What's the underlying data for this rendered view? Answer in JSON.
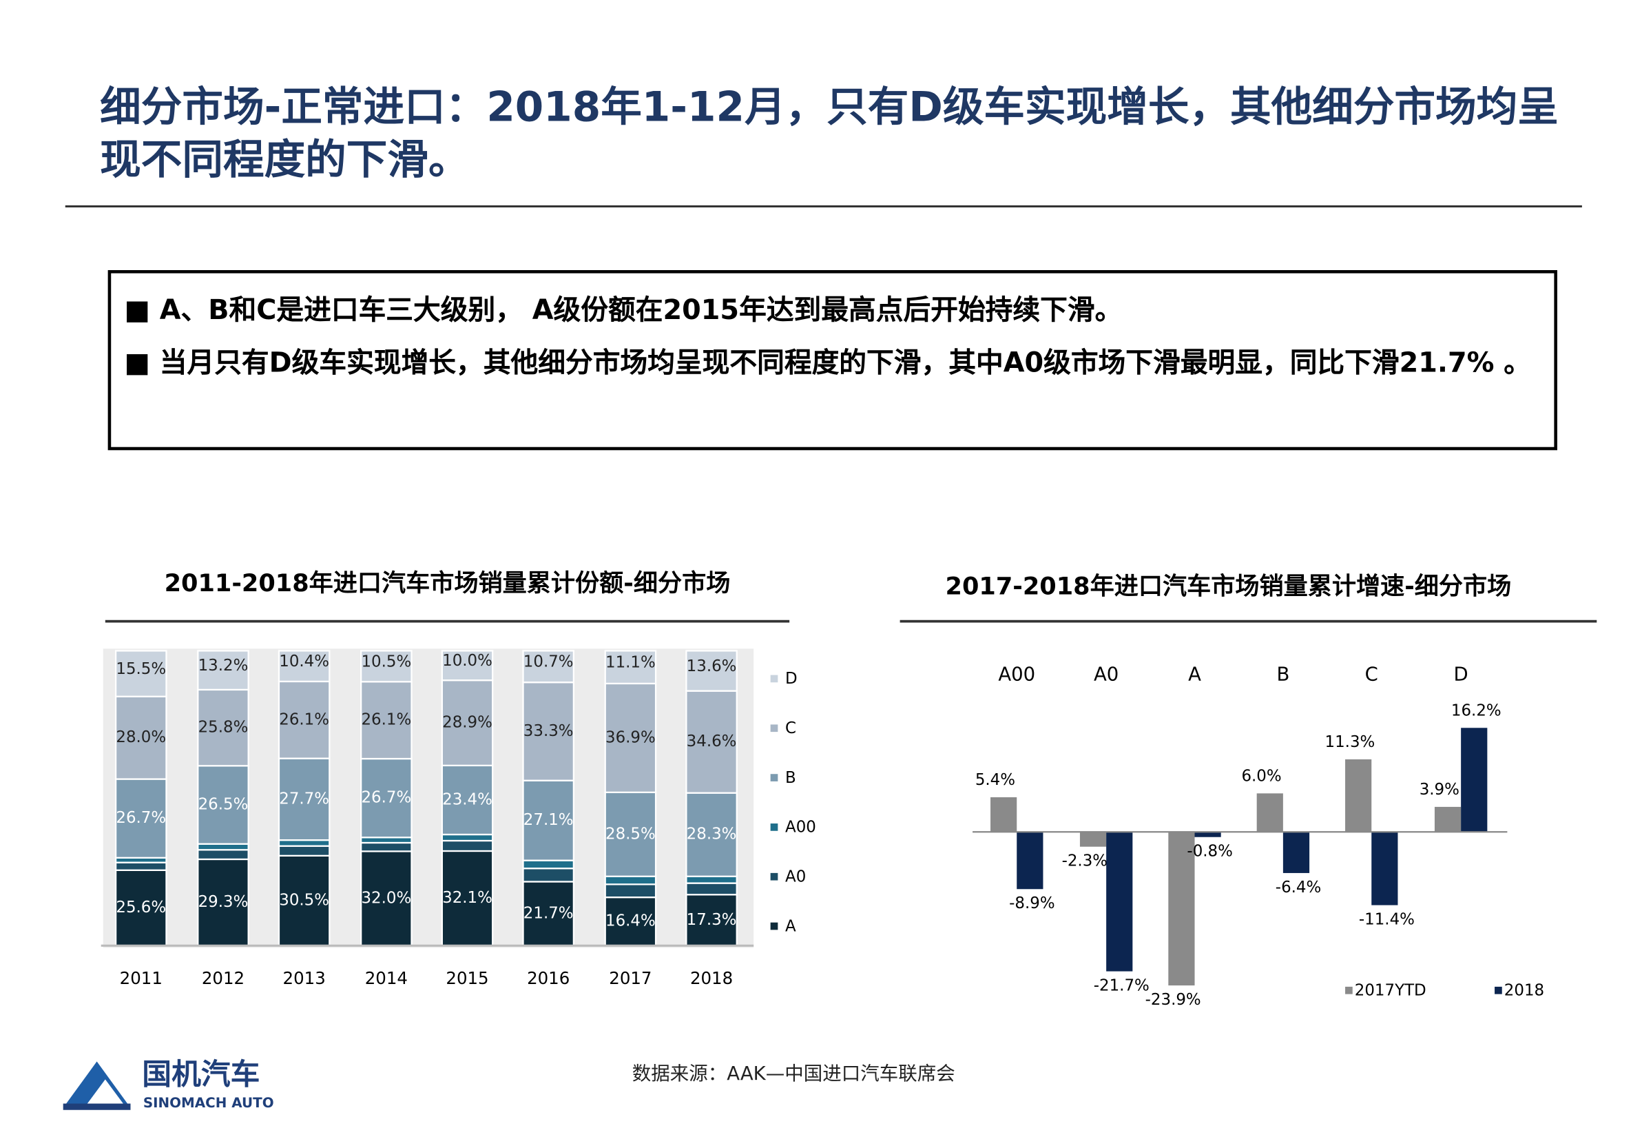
{
  "title": "细分市场-正常进口：2018年1-12月，只有D级车实现增长，其他细分市场均呈现不同程度的下滑。",
  "bullets": [
    "A、B和C是进口车三大级别， A级份额在2015年达到最高点后开始持续下滑。",
    "当月只有D级车实现增长，其他细分市场均呈现不同程度的下滑，其中A0级市场下滑最明显，同比下滑21.7% 。"
  ],
  "chart_data": [
    {
      "type": "bar",
      "stacked": true,
      "title": "2011-2018年进口汽车市场销量累计份额-细分市场",
      "categories": [
        "2011",
        "2012",
        "2013",
        "2014",
        "2015",
        "2016",
        "2017",
        "2018"
      ],
      "ylim": [
        0,
        100
      ],
      "series": [
        {
          "name": "A",
          "color": "#0e2b3a",
          "values": [
            25.6,
            29.3,
            30.5,
            32.0,
            32.1,
            21.7,
            16.4,
            17.3
          ],
          "value_labels": [
            "25.6%",
            "29.3%",
            "30.5%",
            "32.0%",
            "32.1%",
            "21.7%",
            "16.4%",
            "17.3%"
          ]
        },
        {
          "name": "A0",
          "color": "#1d4e66",
          "values": [
            2.6,
            3.2,
            3.3,
            2.9,
            3.5,
            4.5,
            4.4,
            3.9
          ]
        },
        {
          "name": "A00",
          "color": "#1f6f8b",
          "values": [
            1.6,
            2.0,
            2.0,
            1.8,
            2.1,
            2.7,
            2.7,
            2.3
          ]
        },
        {
          "name": "B",
          "color": "#7c9bb0",
          "values": [
            26.7,
            26.5,
            27.7,
            26.7,
            23.4,
            27.1,
            28.5,
            28.3
          ],
          "value_labels": [
            "26.7%",
            "26.5%",
            "27.7%",
            "26.7%",
            "23.4%",
            "27.1%",
            "28.5%",
            "28.3%"
          ]
        },
        {
          "name": "C",
          "color": "#a8b6c6",
          "values": [
            28.0,
            25.8,
            26.1,
            26.1,
            28.9,
            33.3,
            36.9,
            34.6
          ],
          "value_labels": [
            "28.0%",
            "25.8%",
            "26.1%",
            "26.1%",
            "28.9%",
            "33.3%",
            "36.9%",
            "34.6%"
          ]
        },
        {
          "name": "D",
          "color": "#c9d3de",
          "values": [
            15.5,
            13.2,
            10.4,
            10.5,
            10.0,
            10.7,
            11.1,
            13.6
          ],
          "value_labels": [
            "15.5%",
            "13.2%",
            "10.4%",
            "10.5%",
            "10.0%",
            "10.7%",
            "11.1%",
            "13.6%"
          ]
        }
      ]
    },
    {
      "type": "bar",
      "stacked": false,
      "title": "2017-2018年进口汽车市场销量累计增速-细分市场",
      "categories": [
        "A00",
        "A0",
        "A",
        "B",
        "C",
        "D"
      ],
      "ylim": [
        -25,
        18
      ],
      "series": [
        {
          "name": "2017YTD",
          "color": "#8a8a8a",
          "values": [
            5.4,
            -2.3,
            -23.9,
            6.0,
            11.3,
            3.9
          ],
          "value_labels": [
            "5.4%",
            "-2.3%",
            "-23.9%",
            "6.0%",
            "11.3%",
            "3.9%"
          ]
        },
        {
          "name": "2018",
          "color": "#0c2550",
          "values": [
            -8.9,
            -21.7,
            -0.8,
            -6.4,
            -11.4,
            16.2
          ],
          "value_labels": [
            "-8.9%",
            "-21.7%",
            "-0.8%",
            "-6.4%",
            "-11.4%",
            "16.2%"
          ]
        }
      ]
    }
  ],
  "source": "数据来源：AAK—中国进口汽车联席会",
  "logo": {
    "name": "国机汽车",
    "subtitle": "SINOMACH AUTO"
  }
}
